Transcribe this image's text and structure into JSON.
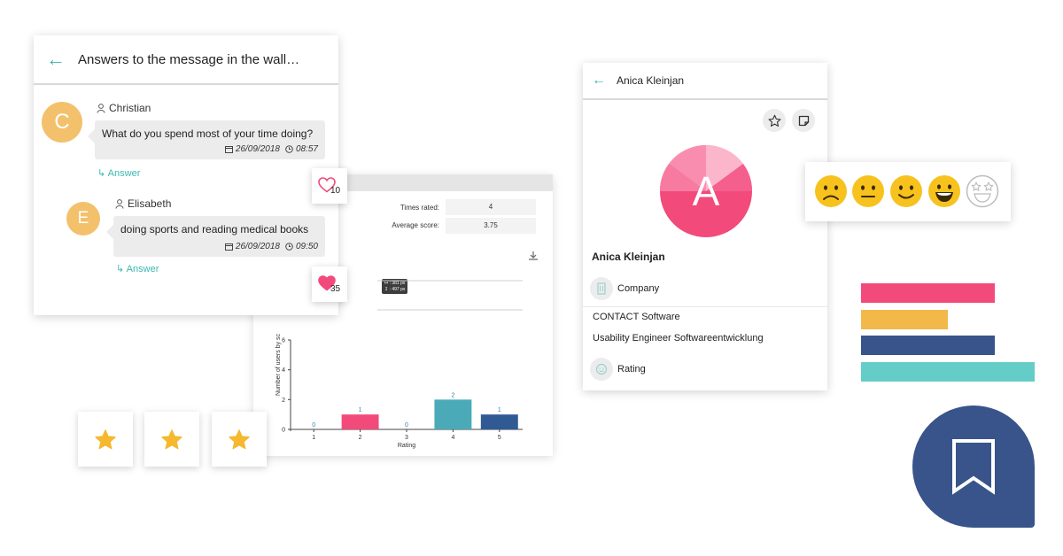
{
  "wall": {
    "title": "Answers to the message in the wall…",
    "messages": [
      {
        "initial": "C",
        "user": "Christian",
        "text": "What do you spend most of your time doing?",
        "date": "26/09/2018",
        "time": "08:57",
        "answer_label": "Answer",
        "likes": "10",
        "liked": false
      },
      {
        "initial": "E",
        "user": "Elisabeth",
        "text": "doing sports and reading medical books",
        "date": "26/09/2018",
        "time": "09:50",
        "answer_label": "Answer",
        "likes": "35",
        "liked": true
      }
    ]
  },
  "stats": {
    "times_rated_label": "Times rated:",
    "times_rated": "4",
    "average_label": "Average score:",
    "average": "3.75",
    "tooltip_line1": "↦ : 381 px",
    "tooltip_line2": "↧ : 497 px"
  },
  "chart_data": {
    "type": "bar",
    "categories": [
      "1",
      "2",
      "3",
      "4",
      "5"
    ],
    "values": [
      0,
      1,
      0,
      2,
      1
    ],
    "colors": [
      "#f24a7a",
      "#f24a7a",
      "#f24a7a",
      "#4aaab8",
      "#2f5a94"
    ],
    "xlabel": "Rating",
    "ylabel": "Number of users by sc",
    "ylim": [
      0,
      6
    ],
    "yticks": [
      "0",
      "2",
      "4",
      "6"
    ],
    "grid": false
  },
  "star_tiles": [
    {
      "icon": "star-icon",
      "color": "#f5b82e"
    },
    {
      "icon": "star-icon",
      "color": "#f5b82e"
    },
    {
      "icon": "star-icon",
      "color": "#f5b82e"
    }
  ],
  "profile": {
    "title": "Anica Kleinjan",
    "avatar_initial": "A",
    "name": "Anica Kleinjan",
    "company_label": "Company",
    "company": "CONTACT Software",
    "position": "Usability Engineer Softwareentwicklung",
    "rating_label": "Rating"
  },
  "smileys": [
    "sad-face-icon",
    "neutral-face-icon",
    "smile-face-icon",
    "grin-face-icon",
    "star-eyes-face-icon"
  ],
  "colors": {
    "accent": "#3ab8b0",
    "pink": "#f24a7a",
    "yellow": "#f3b84a",
    "navy": "#38548a",
    "teal": "#64cdc7"
  },
  "decor_bars": [
    {
      "color": "#f24a7a",
      "fraction": 0.77
    },
    {
      "color": "#f3b84a",
      "fraction": 0.5
    },
    {
      "color": "#38548a",
      "fraction": 0.77
    },
    {
      "color": "#64cdc7",
      "fraction": 1.0
    }
  ]
}
